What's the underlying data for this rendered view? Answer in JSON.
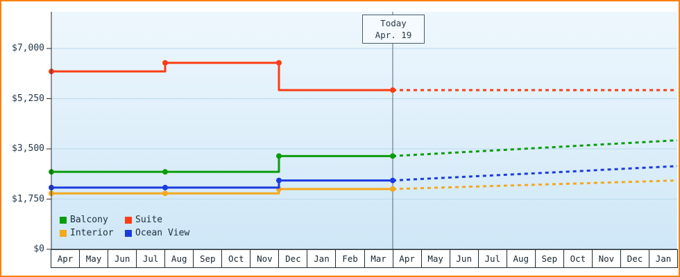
{
  "chart_data": {
    "type": "line",
    "title": "",
    "months": [
      "Apr",
      "May",
      "Jun",
      "Jul",
      "Aug",
      "Sep",
      "Oct",
      "Nov",
      "Dec",
      "Jan",
      "Feb",
      "Mar",
      "Apr",
      "May",
      "Jun",
      "Jul",
      "Aug",
      "Sep",
      "Oct",
      "Nov",
      "Dec",
      "Jan"
    ],
    "x_months_count": 22,
    "y_ticks": [
      {
        "value": 0,
        "label": "$0"
      },
      {
        "value": 1750,
        "label": "$1,750"
      },
      {
        "value": 3500,
        "label": "$3,500"
      },
      {
        "value": 5250,
        "label": "$5,250"
      },
      {
        "value": 7000,
        "label": "$7,000"
      }
    ],
    "ylim": [
      0,
      8300
    ],
    "grid": true,
    "legend_position": "bottom-left",
    "today": {
      "month_index": 12,
      "line1": "Today",
      "line2": "Apr. 19"
    },
    "series": [
      {
        "name": "Balcony",
        "color": "#0a9c0a",
        "solid_path": [
          [
            0,
            2700
          ],
          [
            8,
            2700
          ],
          [
            8,
            3250
          ],
          [
            12,
            3250
          ]
        ],
        "markers": [
          [
            0,
            2700
          ],
          [
            4,
            2700
          ],
          [
            8,
            3250
          ],
          [
            12,
            3250
          ]
        ],
        "projection": [
          [
            12,
            3250
          ],
          [
            22,
            3800
          ]
        ]
      },
      {
        "name": "Suite",
        "color": "#fb3c14",
        "solid_path": [
          [
            0,
            6200
          ],
          [
            4,
            6200
          ],
          [
            4,
            6500
          ],
          [
            8,
            6500
          ],
          [
            8,
            5550
          ],
          [
            12,
            5550
          ]
        ],
        "markers": [
          [
            0,
            6200
          ],
          [
            4,
            6500
          ],
          [
            8,
            6500
          ],
          [
            12,
            5550
          ]
        ],
        "projection": [
          [
            12,
            5550
          ],
          [
            22,
            5550
          ]
        ]
      },
      {
        "name": "Interior",
        "color": "#f3a81d",
        "solid_path": [
          [
            0,
            1950
          ],
          [
            8,
            1950
          ],
          [
            8,
            2100
          ],
          [
            12,
            2100
          ]
        ],
        "markers": [
          [
            0,
            1950
          ],
          [
            4,
            1950
          ],
          [
            8,
            2100
          ],
          [
            12,
            2100
          ]
        ],
        "projection": [
          [
            12,
            2100
          ],
          [
            22,
            2400
          ]
        ]
      },
      {
        "name": "Ocean View",
        "color": "#1a3ae0",
        "solid_path": [
          [
            0,
            2150
          ],
          [
            8,
            2150
          ],
          [
            8,
            2400
          ],
          [
            12,
            2400
          ]
        ],
        "markers": [
          [
            0,
            2150
          ],
          [
            4,
            2150
          ],
          [
            8,
            2400
          ],
          [
            12,
            2400
          ]
        ],
        "projection": [
          [
            12,
            2400
          ],
          [
            22,
            2900
          ]
        ]
      }
    ],
    "legend": {
      "rows": [
        [
          "Balcony",
          "Suite"
        ],
        [
          "Interior",
          "Ocean View"
        ]
      ]
    },
    "colors": {
      "frame_border": "#ff8000",
      "plot_bg_top": "#eef7fd",
      "plot_bg_bottom": "#cfe7f7",
      "grid_line": "#b9d9eb",
      "axis": "#2a2a2a",
      "today_line": "#50657a",
      "text": "#23364a"
    }
  }
}
